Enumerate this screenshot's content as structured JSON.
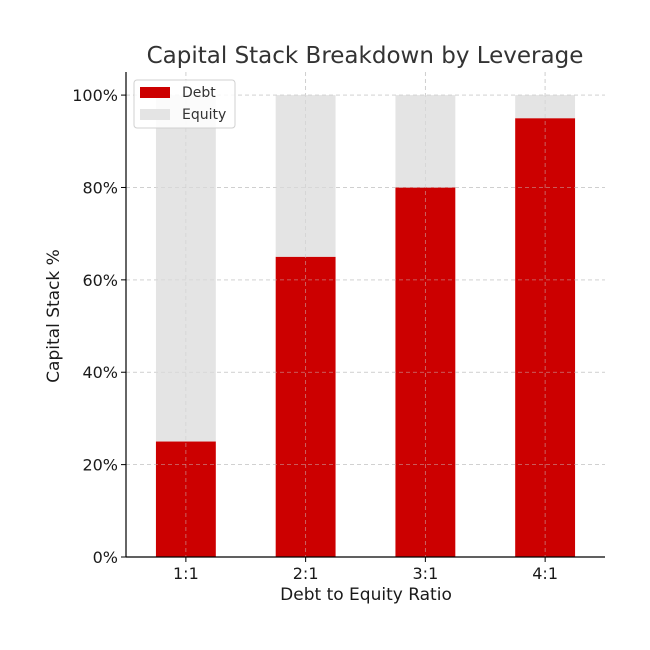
{
  "chart_data": {
    "type": "bar",
    "stacked": true,
    "title": "Capital Stack Breakdown by Leverage",
    "xlabel": "Debt to Equity Ratio",
    "ylabel": "Capital Stack %",
    "categories": [
      "1:1",
      "2:1",
      "3:1",
      "4:1"
    ],
    "series": [
      {
        "name": "Debt",
        "values": [
          25,
          65,
          80,
          95
        ],
        "color": "#cc0000"
      },
      {
        "name": "Equity",
        "values": [
          75,
          35,
          20,
          5
        ],
        "color": "#e4e4e4"
      }
    ],
    "ylim": [
      0,
      105
    ],
    "yticks": [
      0,
      20,
      40,
      60,
      80,
      100
    ],
    "ytick_labels": [
      "0%",
      "20%",
      "40%",
      "60%",
      "80%",
      "100%"
    ],
    "grid": true,
    "legend_position": "top-left"
  }
}
